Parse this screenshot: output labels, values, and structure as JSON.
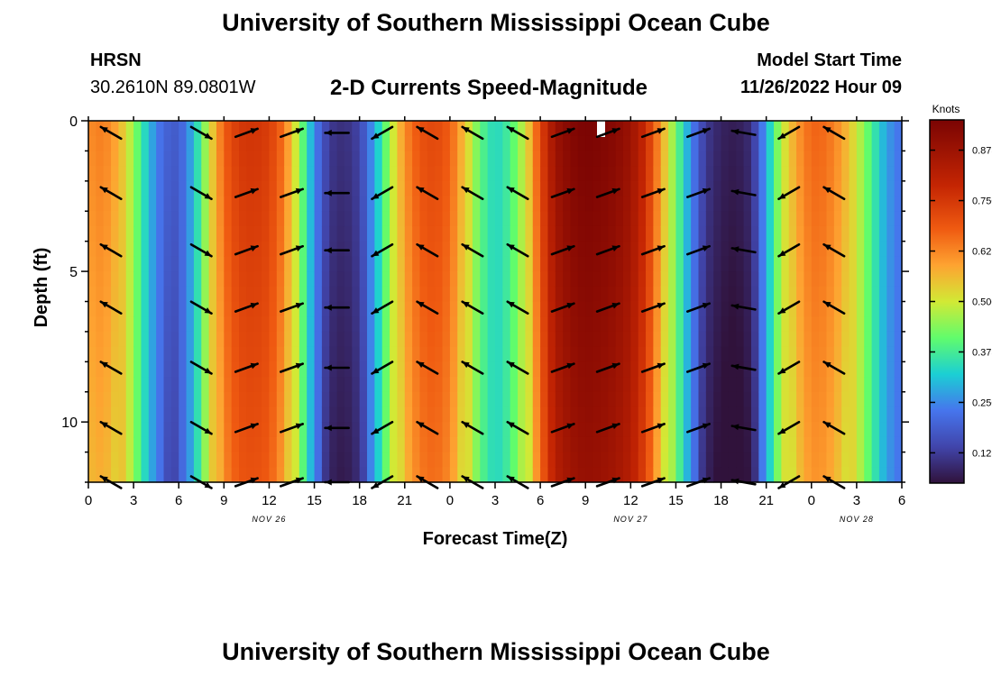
{
  "page": {
    "title": "University of Southern Mississippi Ocean Cube",
    "footer_title": "University of Southern Mississippi Ocean Cube"
  },
  "header": {
    "station": "HRSN",
    "coords": "30.2610N  89.0801W",
    "plot_title": "2-D Currents Speed-Magnitude",
    "model_label": "Model Start Time",
    "model_time": "11/26/2022 Hour 09"
  },
  "chart_data": {
    "type": "heatmap",
    "title": "2-D Currents Speed-Magnitude",
    "xlabel": "Forecast Time(Z)",
    "ylabel": "Depth (ft)",
    "x_ticks": [
      "0",
      "3",
      "6",
      "9",
      "12",
      "15",
      "18",
      "21",
      "0",
      "3",
      "6",
      "9",
      "12",
      "15",
      "18",
      "21",
      "0",
      "3",
      "6"
    ],
    "x_range_hours": [
      0,
      54
    ],
    "date_labels": [
      {
        "label": "NOV 26",
        "hour": 12
      },
      {
        "label": "NOV 27",
        "hour": 36
      },
      {
        "label": "NOV 28",
        "hour": 51
      }
    ],
    "y_ticks": [
      0,
      5,
      10
    ],
    "y_range": [
      0,
      12
    ],
    "y_inverted": true,
    "colorbar": {
      "unit": "Knots",
      "range": [
        0.05,
        0.95
      ],
      "ticks": [
        "0.875",
        "0.750",
        "0.625",
        "0.500",
        "0.375",
        "0.250",
        "0.125"
      ],
      "tick_values": [
        0.875,
        0.75,
        0.625,
        0.5,
        0.375,
        0.25,
        0.125
      ]
    },
    "profile_hours": [
      0,
      1,
      2,
      3,
      4,
      5,
      6,
      7,
      8,
      9,
      10,
      11,
      12,
      13,
      14,
      15,
      16,
      17,
      18,
      19,
      20,
      21,
      22,
      23,
      24,
      25,
      26,
      27,
      28,
      29,
      30,
      31,
      32,
      33,
      34,
      35,
      36,
      37,
      38,
      39,
      40,
      41,
      42,
      43,
      44,
      45,
      46,
      47,
      48,
      49,
      50,
      51,
      52,
      53,
      54
    ],
    "speed_profile_knots": [
      0.62,
      0.64,
      0.58,
      0.45,
      0.3,
      0.2,
      0.18,
      0.3,
      0.5,
      0.68,
      0.75,
      0.76,
      0.74,
      0.65,
      0.45,
      0.25,
      0.12,
      0.1,
      0.14,
      0.28,
      0.46,
      0.62,
      0.7,
      0.72,
      0.68,
      0.55,
      0.4,
      0.33,
      0.38,
      0.5,
      0.72,
      0.88,
      0.93,
      0.95,
      0.94,
      0.92,
      0.88,
      0.78,
      0.6,
      0.42,
      0.25,
      0.12,
      0.08,
      0.07,
      0.1,
      0.28,
      0.48,
      0.6,
      0.67,
      0.66,
      0.6,
      0.5,
      0.38,
      0.27,
      0.22
    ],
    "depth_deep_low_shift": 0.06,
    "vector_hours": [
      1.5,
      7.5,
      10.5,
      13.5,
      16.5,
      19.5,
      22.5,
      25.5,
      28.5,
      31.5,
      34.5,
      37.5,
      40.5,
      43.5,
      46.5,
      49.5
    ],
    "vector_depths": [
      0.4,
      2.4,
      4.3,
      6.2,
      8.2,
      10.2,
      12.0
    ],
    "vector_angles_deg": [
      -210,
      -30,
      20,
      20,
      180,
      -150,
      -210,
      -210,
      -210,
      20,
      20,
      20,
      20,
      170,
      -150,
      -210
    ]
  }
}
